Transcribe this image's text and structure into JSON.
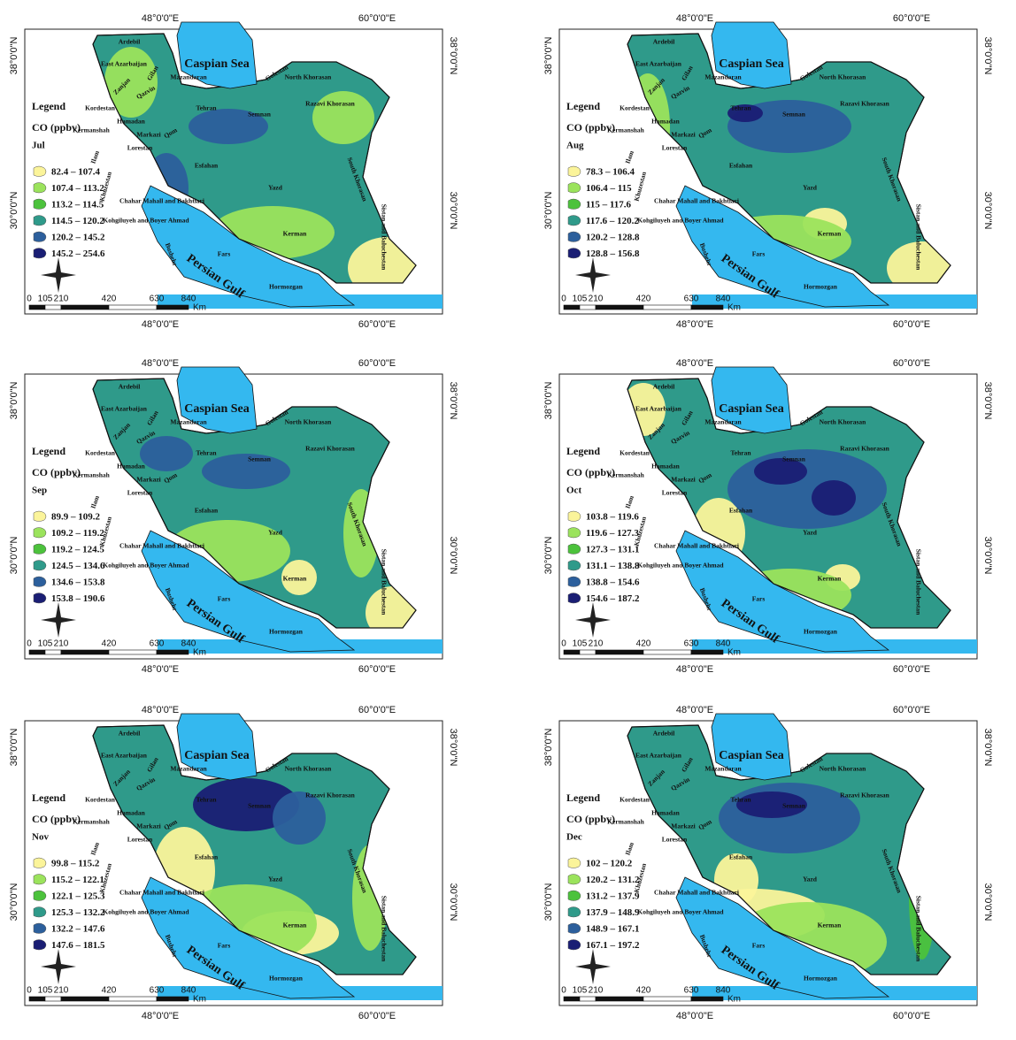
{
  "legend_title": "Legend",
  "variable": "CO (ppbv)",
  "class_colors": [
    "#fbf49a",
    "#9be35c",
    "#4cc23c",
    "#2f9a8a",
    "#2c5f9c",
    "#1a1e74"
  ],
  "coordinates": {
    "lon_48": "48°0'0\"E",
    "lon_60": "60°0'0\"E",
    "lat_38": "38°0'0\"N",
    "lat_30": "30°0'0\"N"
  },
  "seas": [
    "Caspian Sea",
    "Persian Gulf"
  ],
  "provinces": [
    "Ardebil",
    "East Azarbaijan",
    "Gilan",
    "Zanjan",
    "Qazvin",
    "Mazandaran",
    "Golestan",
    "North Khorasan",
    "Razavi Khorasan",
    "Tehran",
    "Semnan",
    "Kordestan",
    "Hamadan",
    "Markazi",
    "Qom",
    "Kermanshah",
    "Lorestan",
    "Ilam",
    "Esfahan",
    "Yazd",
    "South Khorasan",
    "Khuzestan",
    "Chahar Mahall and Bakhtiari",
    "Kohgiluyeh and Boyer Ahmad",
    "Bushehr",
    "Fars",
    "Kerman",
    "Hormozgan",
    "Sistan and Baluchestan"
  ],
  "scale_bar": {
    "labels": [
      "0",
      "105",
      "210",
      "420",
      "630",
      "840"
    ],
    "unit": "Km"
  },
  "panels": [
    {
      "month": "Jul",
      "classes": [
        "82.4 – 107.4",
        "107.4 – 113.2",
        "113.2 – 114.5",
        "114.5 – 120.2",
        "120.2 – 145.2",
        "145.2 – 254.6"
      ]
    },
    {
      "month": "Aug",
      "classes": [
        "78.3 – 106.4",
        "106.4 – 115",
        "115 – 117.6",
        "117.6 – 120.2",
        "120.2 – 128.8",
        "128.8 – 156.8"
      ]
    },
    {
      "month": "Sep",
      "classes": [
        "89.9 – 109.2",
        "109.2 – 119.2",
        "119.2 – 124.5",
        "124.5 – 134.6",
        "134.6 – 153.8",
        "153.8 – 190.6"
      ]
    },
    {
      "month": "Oct",
      "classes": [
        "103.8 – 119.6",
        "119.6 – 127.3",
        "127.3 – 131.1",
        "131.1 – 138.8",
        "138.8 – 154.6",
        "154.6 – 187.2"
      ]
    },
    {
      "month": "Nov",
      "classes": [
        "99.8 – 115.2",
        "115.2 – 122.1",
        "122.1 – 125.3",
        "125.3 – 132.2",
        "132.2 – 147.6",
        "147.6 – 181.5"
      ]
    },
    {
      "month": "Dec",
      "classes": [
        "102 – 120.2",
        "120.2 – 131.2",
        "131.2 – 137.9",
        "137.9 – 148.9",
        "148.9 – 167.1",
        "167.1 – 197.2"
      ]
    }
  ]
}
